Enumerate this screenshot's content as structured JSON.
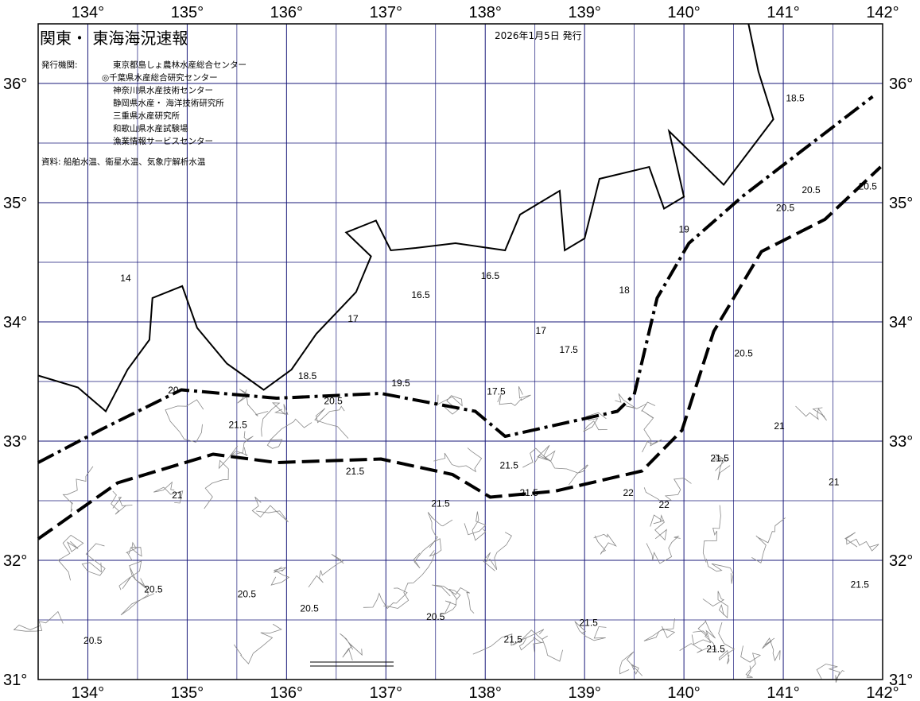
{
  "header": {
    "title": "関東・ 東海海況速報",
    "issued": "2026年1月5日 発行",
    "org_label": "発行機関:",
    "orgs": [
      "東京都島しょ農林水産総合センター",
      "◎千葉県水産総合研究センター",
      "神奈川県水産技術センター",
      "静岡県水産・ 海洋技術研究所",
      "三重県水産研究所",
      "和歌山県水産試験場",
      "漁業情報サービスセンター"
    ],
    "source": "資料: 船舶水温、衛星水温、気象庁解析水温"
  },
  "map": {
    "lon_range": [
      133.5,
      142
    ],
    "lat_range": [
      31,
      36.5
    ],
    "lon_ticks": [
      "134°",
      "135°",
      "136°",
      "137°",
      "138°",
      "139°",
      "140°",
      "141°",
      "142°"
    ],
    "lat_ticks": [
      "31°",
      "32°",
      "33°",
      "34°",
      "35°",
      "36°"
    ],
    "grid_color": "#1a1a7a",
    "contour_color": "#000000",
    "minor_contour_color": "#888888",
    "coastline": [
      [
        133.5,
        33.55
      ],
      [
        133.9,
        33.45
      ],
      [
        134.18,
        33.25
      ],
      [
        134.4,
        33.6
      ],
      [
        134.62,
        33.85
      ],
      [
        134.65,
        34.2
      ],
      [
        134.95,
        34.3
      ],
      [
        135.1,
        33.95
      ],
      [
        135.4,
        33.65
      ],
      [
        135.77,
        33.43
      ],
      [
        136.05,
        33.6
      ],
      [
        136.3,
        33.9
      ],
      [
        136.7,
        34.25
      ],
      [
        136.85,
        34.55
      ],
      [
        136.6,
        34.75
      ],
      [
        136.9,
        34.85
      ],
      [
        137.05,
        34.6
      ],
      [
        137.3,
        34.62
      ],
      [
        137.7,
        34.66
      ],
      [
        138.2,
        34.6
      ],
      [
        138.35,
        34.9
      ],
      [
        138.75,
        35.1
      ],
      [
        138.8,
        34.6
      ],
      [
        139.0,
        34.7
      ],
      [
        139.15,
        35.2
      ],
      [
        139.65,
        35.3
      ],
      [
        139.8,
        34.95
      ],
      [
        140.0,
        35.05
      ],
      [
        139.85,
        35.6
      ],
      [
        140.4,
        35.15
      ],
      [
        140.9,
        35.7
      ],
      [
        140.75,
        36.1
      ],
      [
        140.65,
        36.5
      ]
    ],
    "fronts": [
      {
        "style": "dash-dot",
        "points": [
          [
            133.5,
            32.82
          ],
          [
            134.14,
            33.1
          ],
          [
            134.94,
            33.43
          ],
          [
            135.9,
            33.36
          ],
          [
            136.95,
            33.4
          ],
          [
            137.9,
            33.25
          ],
          [
            138.2,
            33.04
          ],
          [
            139.33,
            33.25
          ],
          [
            139.5,
            33.39
          ],
          [
            139.73,
            34.2
          ],
          [
            140.05,
            34.66
          ],
          [
            140.6,
            35.06
          ],
          [
            141.1,
            35.38
          ],
          [
            141.9,
            35.89
          ]
        ]
      },
      {
        "style": "dash",
        "points": [
          [
            133.5,
            32.18
          ],
          [
            134.3,
            32.65
          ],
          [
            135.26,
            32.89
          ],
          [
            135.9,
            32.82
          ],
          [
            136.95,
            32.85
          ],
          [
            137.67,
            32.72
          ],
          [
            138.05,
            32.53
          ],
          [
            138.7,
            32.58
          ],
          [
            139.58,
            32.75
          ],
          [
            139.98,
            33.09
          ],
          [
            140.3,
            33.92
          ],
          [
            140.78,
            34.59
          ],
          [
            141.42,
            34.86
          ],
          [
            141.98,
            35.3
          ]
        ]
      }
    ],
    "contour_labels": [
      {
        "t": "16.5",
        "lon": 137.35,
        "lat": 34.2
      },
      {
        "t": "17",
        "lon": 136.67,
        "lat": 34.0
      },
      {
        "t": "17.5",
        "lon": 138.84,
        "lat": 33.74
      },
      {
        "t": "18.5",
        "lon": 136.21,
        "lat": 33.52
      },
      {
        "t": "19.5",
        "lon": 137.15,
        "lat": 33.46
      },
      {
        "t": "20.5",
        "lon": 136.47,
        "lat": 33.31
      },
      {
        "t": "21.5",
        "lon": 135.51,
        "lat": 33.11
      },
      {
        "t": "21.5",
        "lon": 138.24,
        "lat": 32.77
      },
      {
        "t": "21.5",
        "lon": 136.69,
        "lat": 32.72
      },
      {
        "t": "21.5",
        "lon": 137.55,
        "lat": 32.45
      },
      {
        "t": "21.5",
        "lon": 138.44,
        "lat": 32.54
      },
      {
        "t": "21.5",
        "lon": 140.36,
        "lat": 32.83
      },
      {
        "t": "22",
        "lon": 139.44,
        "lat": 32.54
      },
      {
        "t": "21",
        "lon": 141.51,
        "lat": 32.63
      },
      {
        "t": "20.5",
        "lon": 134.66,
        "lat": 31.73
      },
      {
        "t": "20.5",
        "lon": 134.05,
        "lat": 31.3
      },
      {
        "t": "20.5",
        "lon": 137.5,
        "lat": 31.5
      },
      {
        "t": "21.5",
        "lon": 138.28,
        "lat": 31.31
      },
      {
        "t": "21.5",
        "lon": 139.04,
        "lat": 31.45
      },
      {
        "t": "21.5",
        "lon": 140.32,
        "lat": 31.23
      },
      {
        "t": "21.5",
        "lon": 141.77,
        "lat": 31.77
      },
      {
        "t": "20.5",
        "lon": 141.02,
        "lat": 34.93
      },
      {
        "t": "20.5",
        "lon": 141.28,
        "lat": 35.08
      },
      {
        "t": "18",
        "lon": 139.4,
        "lat": 34.24
      },
      {
        "t": "19",
        "lon": 140.0,
        "lat": 34.75
      },
      {
        "t": "16.5",
        "lon": 138.05,
        "lat": 34.36
      },
      {
        "t": "17",
        "lon": 138.56,
        "lat": 33.9
      },
      {
        "t": "17.5",
        "lon": 138.11,
        "lat": 33.39
      },
      {
        "t": "21",
        "lon": 134.9,
        "lat": 32.52
      },
      {
        "t": "22",
        "lon": 139.8,
        "lat": 32.44
      },
      {
        "t": "20.5",
        "lon": 135.6,
        "lat": 31.69
      },
      {
        "t": "20.5",
        "lon": 136.23,
        "lat": 31.57
      },
      {
        "t": "20",
        "lon": 134.86,
        "lat": 33.4
      },
      {
        "t": "14",
        "lon": 134.38,
        "lat": 34.34
      },
      {
        "t": "18.5",
        "lon": 141.12,
        "lat": 35.85
      },
      {
        "t": "20.5",
        "lon": 141.85,
        "lat": 35.11
      },
      {
        "t": "20.5",
        "lon": 140.6,
        "lat": 33.71
      },
      {
        "t": "21",
        "lon": 140.96,
        "lat": 33.1
      }
    ]
  }
}
